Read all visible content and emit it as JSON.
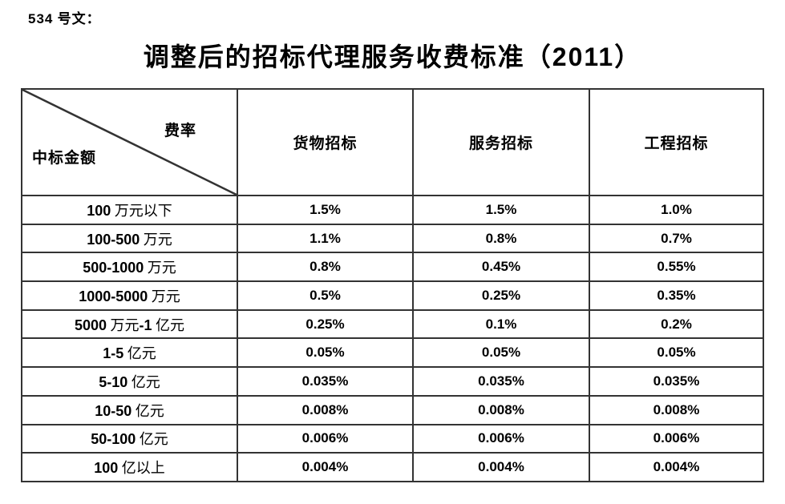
{
  "page": {
    "doc_ref": "534 号文：",
    "title": "调整后的招标代理服务收费标准（2011）"
  },
  "table": {
    "corner": {
      "top_right_label": "费率",
      "bottom_left_label": "中标金额"
    },
    "columns": [
      "货物招标",
      "服务招标",
      "工程招标"
    ],
    "rows": [
      {
        "amount": "100 万元以下",
        "values": [
          "1.5%",
          "1.5%",
          "1.0%"
        ]
      },
      {
        "amount": "100-500 万元",
        "values": [
          "1.1%",
          "0.8%",
          "0.7%"
        ]
      },
      {
        "amount": "500-1000 万元",
        "values": [
          "0.8%",
          "0.45%",
          "0.55%"
        ]
      },
      {
        "amount": "1000-5000 万元",
        "values": [
          "0.5%",
          "0.25%",
          "0.35%"
        ]
      },
      {
        "amount": "5000 万元-1 亿元",
        "values": [
          "0.25%",
          "0.1%",
          "0.2%"
        ]
      },
      {
        "amount": "1-5 亿元",
        "values": [
          "0.05%",
          "0.05%",
          "0.05%"
        ]
      },
      {
        "amount": "5-10 亿元",
        "values": [
          "0.035%",
          "0.035%",
          "0.035%"
        ]
      },
      {
        "amount": "10-50 亿元",
        "values": [
          "0.008%",
          "0.008%",
          "0.008%"
        ]
      },
      {
        "amount": "50-100 亿元",
        "values": [
          "0.006%",
          "0.006%",
          "0.006%"
        ]
      },
      {
        "amount": "100 亿以上",
        "values": [
          "0.004%",
          "0.004%",
          "0.004%"
        ]
      }
    ]
  },
  "colors": {
    "text": "#000000",
    "border": "#333333",
    "background": "#ffffff"
  }
}
